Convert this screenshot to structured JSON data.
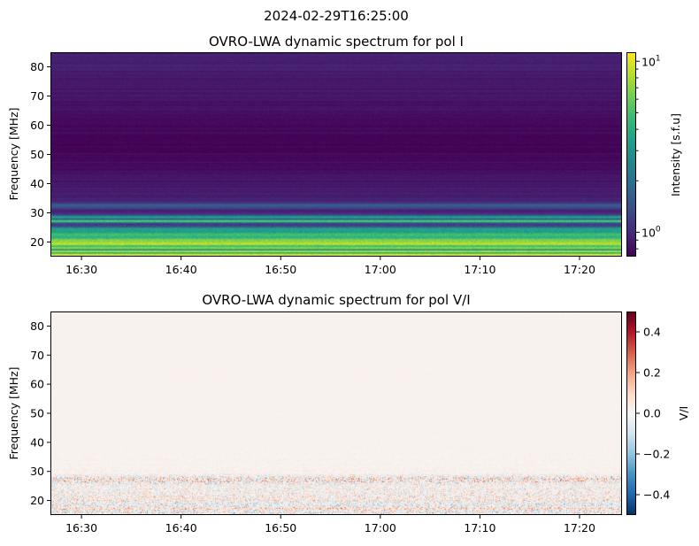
{
  "figure": {
    "suptitle": "2024-02-29T16:25:00"
  },
  "chart_data": [
    {
      "type": "heatmap",
      "title": "OVRO-LWA dynamic spectrum for pol I",
      "xlabel": "",
      "ylabel": "Frequency [MHz]",
      "xticks": [
        "16:30",
        "16:40",
        "16:50",
        "17:00",
        "17:10",
        "17:20"
      ],
      "xlim": [
        "16:26:53",
        "17:24:16"
      ],
      "yticks": [
        20,
        30,
        40,
        50,
        60,
        70,
        80
      ],
      "ylim": [
        15,
        85
      ],
      "colormap": "viridis",
      "colorbar": {
        "label": "Intensity [s.f.u]",
        "scale": "log",
        "range": [
          0.72,
          11.3
        ],
        "ticks": [
          "10^0",
          "10^1"
        ],
        "tick_values": [
          1,
          10
        ]
      },
      "intensity_profile_vs_frequency": [
        [
          15,
          11
        ],
        [
          15.6,
          10.5
        ],
        [
          16.3,
          3
        ],
        [
          16.8,
          10
        ],
        [
          17.3,
          2.2
        ],
        [
          18,
          8
        ],
        [
          18.6,
          4
        ],
        [
          19.3,
          9
        ],
        [
          20.2,
          7
        ],
        [
          21,
          6
        ],
        [
          21.6,
          4
        ],
        [
          22.5,
          5
        ],
        [
          23.5,
          3.2
        ],
        [
          24.5,
          3.5
        ],
        [
          25.2,
          1.6
        ],
        [
          25.8,
          1.1
        ],
        [
          26.5,
          1.3
        ],
        [
          27.2,
          6
        ],
        [
          27.8,
          1.2
        ],
        [
          28.4,
          4
        ],
        [
          29,
          1.8
        ],
        [
          29.6,
          1.0
        ],
        [
          31,
          0.9
        ],
        [
          32.3,
          1.6
        ],
        [
          32.8,
          1.5
        ],
        [
          33.5,
          0.95
        ],
        [
          40,
          0.85
        ],
        [
          50,
          0.76
        ],
        [
          55,
          0.74
        ],
        [
          64,
          0.8
        ],
        [
          72,
          0.85
        ],
        [
          80,
          0.9
        ],
        [
          85,
          0.95
        ]
      ]
    },
    {
      "type": "heatmap",
      "title": "OVRO-LWA dynamic spectrum for pol V/I",
      "xlabel": "",
      "ylabel": "Frequency [MHz]",
      "xticks": [
        "16:30",
        "16:40",
        "16:50",
        "17:00",
        "17:10",
        "17:20"
      ],
      "xlim": [
        "16:26:53",
        "17:24:16"
      ],
      "yticks": [
        20,
        30,
        40,
        50,
        60,
        70,
        80
      ],
      "ylim": [
        15,
        85
      ],
      "colormap": "RdBu_r",
      "colorbar": {
        "label": "V/I",
        "scale": "linear",
        "range": [
          -0.5,
          0.5
        ],
        "ticks": [
          "−0.4",
          "−0.2",
          "0.0",
          "0.2",
          "0.4"
        ],
        "tick_values": [
          -0.4,
          -0.2,
          0,
          0.2,
          0.4
        ]
      },
      "typical_abs_vi_vs_frequency": [
        [
          15,
          0.25
        ],
        [
          20,
          0.2
        ],
        [
          25,
          0.15
        ],
        [
          27.5,
          0.3
        ],
        [
          29,
          0.08
        ],
        [
          31,
          0.03
        ],
        [
          40,
          0.01
        ],
        [
          85,
          0.01
        ]
      ],
      "background_vi": 0.02
    }
  ]
}
